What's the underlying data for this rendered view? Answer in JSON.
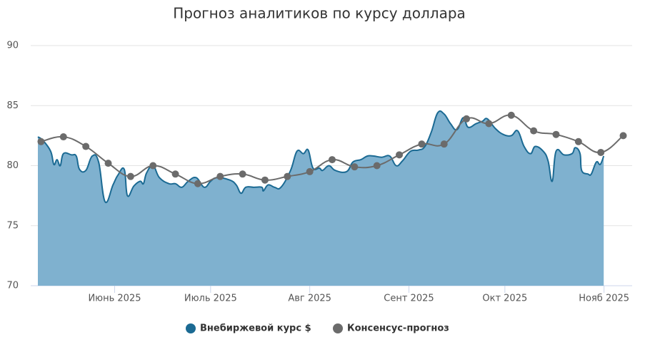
{
  "chart_data": {
    "type": "area-line",
    "title": "Прогноз аналитиков по курсу доллара",
    "xlim": [
      128,
      312
    ],
    "xticks": [
      {
        "value": 152,
        "label": "Июнь 2025"
      },
      {
        "value": 182,
        "label": "Июль 2025"
      },
      {
        "value": 213,
        "label": "Авг 2025"
      },
      {
        "value": 244,
        "label": "Сент 2025"
      },
      {
        "value": 274,
        "label": "Окт 2025"
      },
      {
        "value": 305,
        "label": "Нояб 2025"
      }
    ],
    "ylim": [
      70,
      90
    ],
    "yticks": [
      70,
      75,
      80,
      85,
      90
    ],
    "grid": true,
    "legend": "bottom",
    "series": [
      {
        "name": "Внебиржевой курс $",
        "kind": "area",
        "color": "#1b6a93",
        "fill": "#7fb1cf",
        "x": [
          128,
          129.6,
          132,
          133,
          134,
          135,
          136,
          138.5,
          140,
          141,
          143,
          145,
          147,
          149,
          151.5,
          153,
          155,
          156,
          158,
          160,
          161,
          162,
          164,
          166,
          169,
          171,
          173,
          175,
          177.5,
          180,
          182,
          184,
          188,
          190,
          191.5,
          193,
          195.5,
          198,
          198.5,
          200,
          202,
          204,
          207,
          209,
          211,
          212.5,
          214,
          216,
          217,
          219,
          221,
          224.5,
          226.5,
          229,
          231,
          233,
          235.5,
          238,
          240,
          242,
          244.5,
          247,
          249,
          251,
          253,
          255,
          257,
          259,
          261,
          262.5,
          265,
          267,
          268.5,
          271,
          273.5,
          276,
          278,
          280,
          282,
          283.5,
          286,
          287.5,
          288.8,
          290,
          292.5,
          295,
          296,
          297.5,
          298,
          300,
          301,
          302.6,
          303.8,
          304.9
        ],
        "values": [
          82.4,
          82.1,
          81.2,
          80.1,
          80.5,
          80.0,
          81.0,
          80.9,
          80.8,
          79.7,
          79.6,
          80.8,
          80.3,
          77.0,
          78.4,
          79.2,
          79.7,
          77.5,
          78.3,
          78.7,
          78.5,
          79.4,
          80.0,
          79.0,
          78.5,
          78.5,
          78.2,
          78.7,
          79.0,
          78.2,
          78.7,
          79.0,
          78.8,
          78.4,
          77.7,
          78.2,
          78.2,
          78.2,
          77.9,
          78.4,
          78.2,
          78.2,
          79.6,
          81.2,
          81.0,
          81.3,
          79.8,
          79.8,
          79.6,
          80.0,
          79.6,
          79.5,
          80.3,
          80.5,
          80.8,
          80.8,
          80.7,
          80.8,
          80.0,
          80.4,
          81.2,
          81.3,
          81.6,
          82.8,
          84.4,
          84.3,
          83.5,
          83.0,
          84.0,
          83.2,
          83.5,
          83.7,
          83.9,
          83.1,
          82.6,
          82.5,
          82.9,
          81.6,
          81.0,
          81.6,
          81.2,
          80.4,
          78.7,
          81.2,
          80.9,
          81.0,
          81.5,
          81.0,
          79.6,
          79.3,
          79.3,
          80.3,
          80.1,
          80.8
        ]
      },
      {
        "name": "Консенсус-прогноз",
        "kind": "line",
        "color": "#6b6b6b",
        "x": [
          129,
          136,
          143,
          150,
          157,
          164,
          171,
          178,
          185,
          192,
          199,
          206,
          213,
          220,
          227,
          234,
          241,
          248,
          255,
          262,
          269,
          276,
          283,
          290,
          297,
          304,
          311
        ],
        "values": [
          82.0,
          82.4,
          81.6,
          80.2,
          79.1,
          80.0,
          79.3,
          78.5,
          79.1,
          79.3,
          78.8,
          79.1,
          79.5,
          80.5,
          79.9,
          80.0,
          80.9,
          81.8,
          81.8,
          83.9,
          83.5,
          84.2,
          82.9,
          82.6,
          82.0,
          81.1,
          82.5
        ]
      }
    ]
  }
}
